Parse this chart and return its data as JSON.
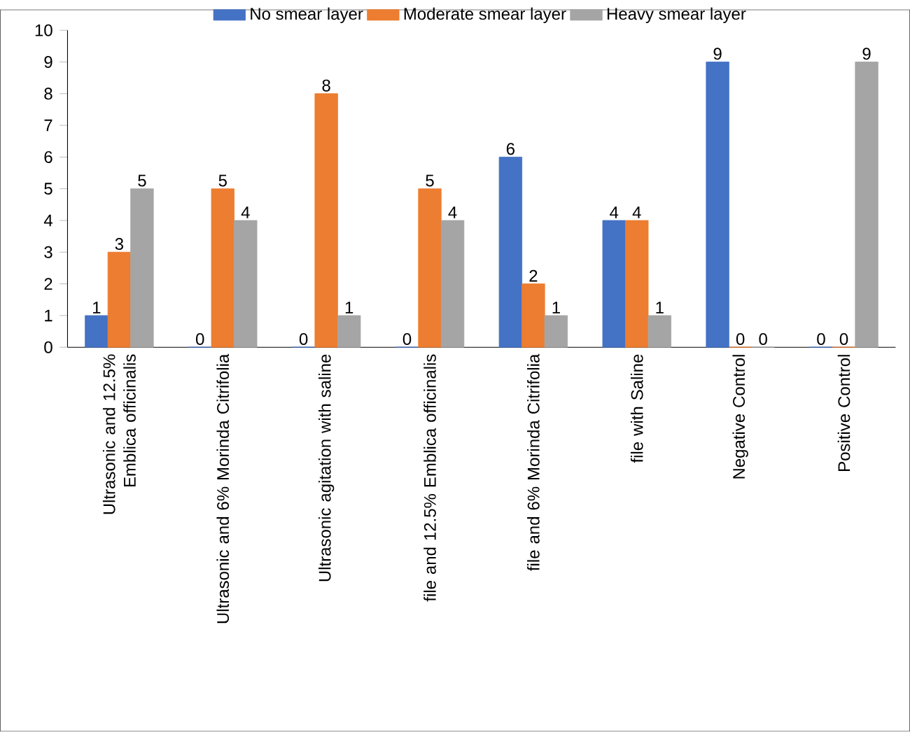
{
  "chart_data": {
    "type": "bar",
    "categories": [
      "Ultrasonic and 12.5% Emblica officinalis",
      "Ultrasonic and 6% Morinda Citrifolia",
      "Ultrasonic agitation with saline",
      "file and 12.5% Emblica officinalis",
      "file and 6% Morinda Citrifolia",
      "file with Saline",
      "Negative Control",
      "Positive Control"
    ],
    "series": [
      {
        "name": "No smear layer",
        "color": "#4472c4",
        "values": [
          1,
          0,
          0,
          0,
          6,
          4,
          9,
          0
        ]
      },
      {
        "name": "Moderate smear layer",
        "color": "#ed7d31",
        "values": [
          3,
          5,
          8,
          5,
          2,
          4,
          0,
          0
        ]
      },
      {
        "name": "Heavy smear layer",
        "color": "#a5a5a5",
        "values": [
          5,
          4,
          1,
          4,
          1,
          1,
          0,
          9
        ]
      }
    ],
    "ylim": [
      0,
      10
    ],
    "yticks": [
      0,
      1,
      2,
      3,
      4,
      5,
      6,
      7,
      8,
      9,
      10
    ],
    "data_labels": true,
    "legend": "top",
    "grid": false
  }
}
